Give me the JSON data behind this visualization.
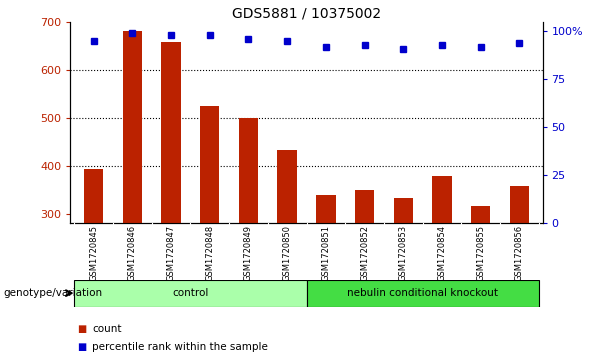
{
  "title": "GDS5881 / 10375002",
  "samples": [
    "GSM1720845",
    "GSM1720846",
    "GSM1720847",
    "GSM1720848",
    "GSM1720849",
    "GSM1720850",
    "GSM1720851",
    "GSM1720852",
    "GSM1720853",
    "GSM1720854",
    "GSM1720855",
    "GSM1720856"
  ],
  "counts": [
    393,
    680,
    658,
    525,
    500,
    432,
    338,
    350,
    333,
    378,
    315,
    358
  ],
  "percentiles": [
    95,
    99,
    98,
    98,
    96,
    95,
    92,
    93,
    91,
    93,
    92,
    94
  ],
  "groups": [
    {
      "label": "control",
      "start": 0,
      "end": 6,
      "color": "#aaffaa"
    },
    {
      "label": "nebulin conditional knockout",
      "start": 6,
      "end": 12,
      "color": "#44dd44"
    }
  ],
  "bar_color": "#bb2200",
  "dot_color": "#0000cc",
  "ylim_left": [
    280,
    700
  ],
  "ylim_right": [
    0,
    105
  ],
  "yticks_left": [
    300,
    400,
    500,
    600,
    700
  ],
  "yticks_right": [
    0,
    25,
    50,
    75,
    100
  ],
  "ytick_labels_right": [
    "0",
    "25",
    "50",
    "75",
    "100%"
  ],
  "grid_values": [
    400,
    500,
    600
  ],
  "bar_bottom": 280,
  "background_color": "#ffffff",
  "tick_label_area_color": "#cccccc",
  "legend_count_label": "count",
  "legend_percentile_label": "percentile rank within the sample",
  "genotype_label": "genotype/variation"
}
